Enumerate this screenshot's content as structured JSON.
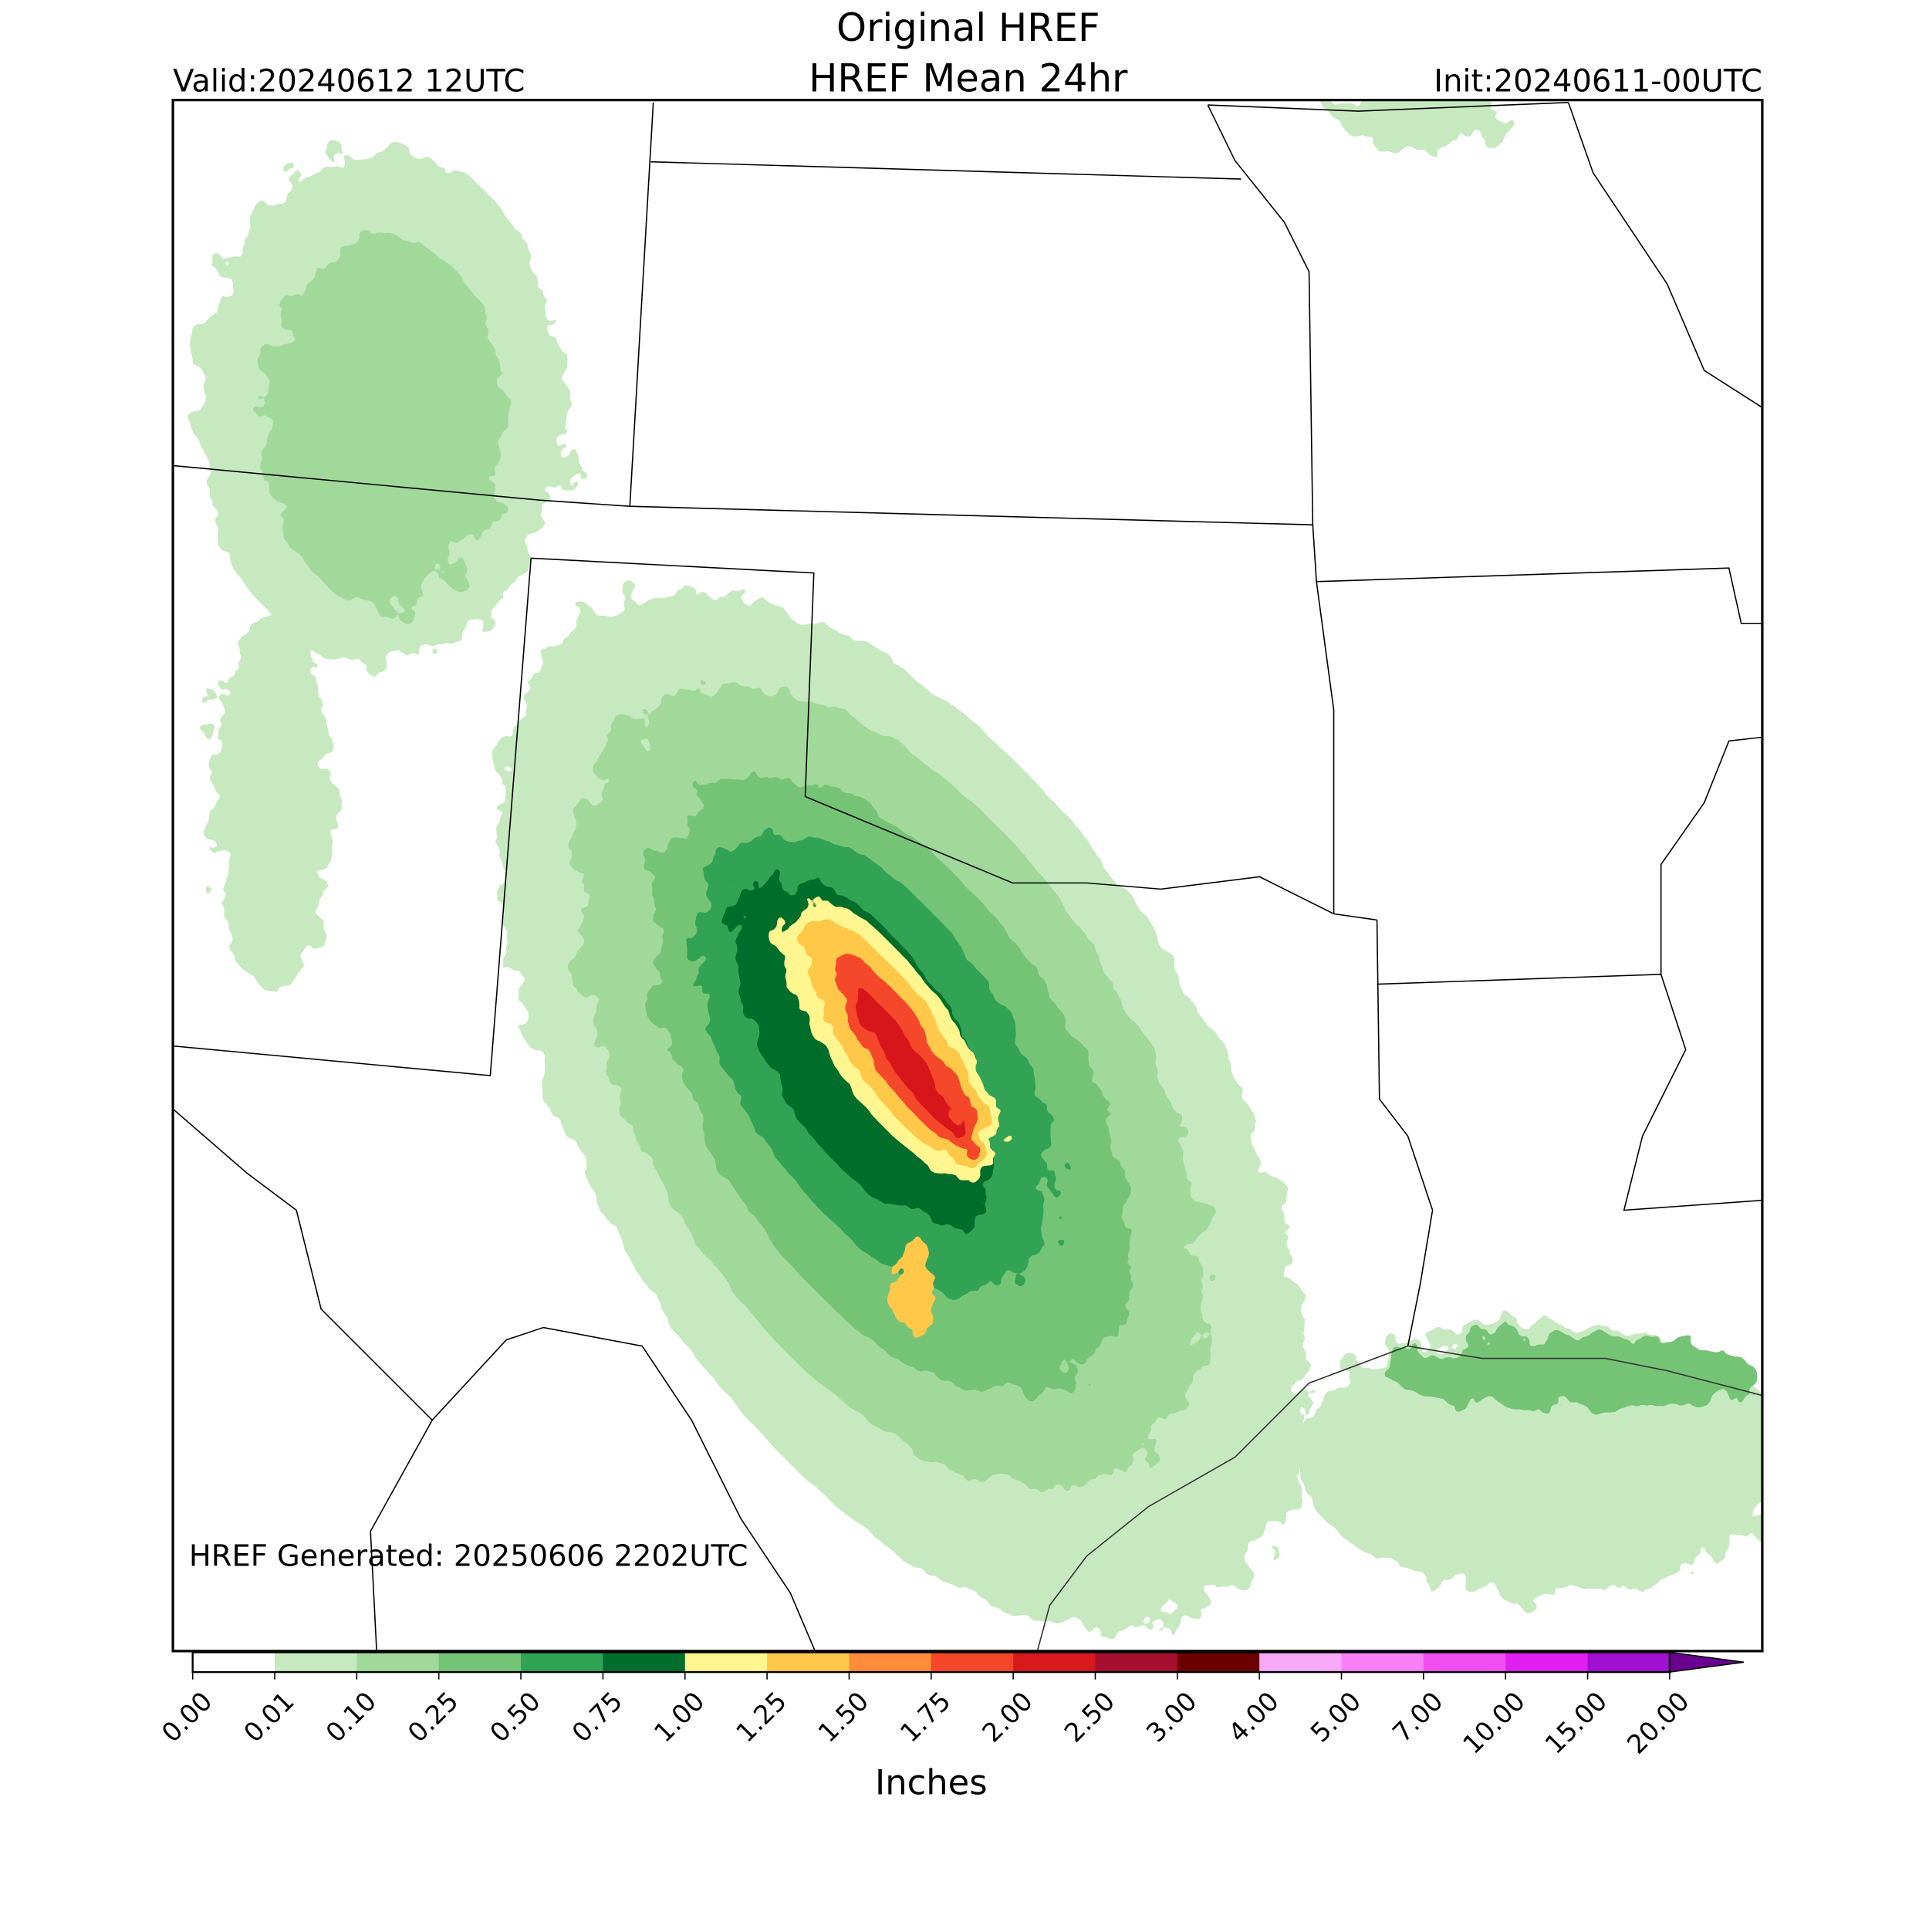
{
  "header": {
    "title": "Original HREF",
    "subtitle": "HREF Mean 24hr",
    "valid": "Valid:20240612 12UTC",
    "init": "Init:20240611-00UTC"
  },
  "annotation": "HREF Generated: 20250606 2202UTC",
  "colorbar": {
    "ticks": [
      "0.00",
      "0.01",
      "0.10",
      "0.25",
      "0.50",
      "0.75",
      "1.00",
      "1.25",
      "1.50",
      "1.75",
      "2.00",
      "2.50",
      "3.00",
      "4.00",
      "5.00",
      "7.00",
      "10.00",
      "15.00",
      "20.00"
    ],
    "colors": [
      "#ffffff",
      "#c7e9c0",
      "#a1d99b",
      "#74c476",
      "#31a354",
      "#006d2c",
      "#fff68f",
      "#ffc84a",
      "#ff8c3a",
      "#f5462a",
      "#d7191c",
      "#a50f30",
      "#6b0000",
      "#f7a8f7",
      "#f780f7",
      "#f050f0",
      "#e020f0",
      "#a010d0"
    ],
    "extend_color": "#6a0090",
    "label": "Inches"
  }
}
